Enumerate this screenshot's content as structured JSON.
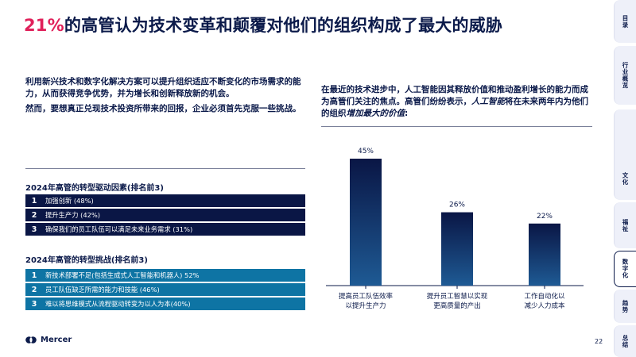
{
  "headline": {
    "accent": "21%",
    "rest": "的高管认为技术变革和颠覆对他们的组织构成了最大的威胁"
  },
  "intro": {
    "p1": "利用新兴技术和数字化解决方案可以提升组织适应不断变化的市场需求的能力，从而获得竞争优势，并为增长和创新释放新的机会。",
    "p2": "然而，要想真正兑现技术投资所带来的回报，企业必须首先克服一些挑战。"
  },
  "drivers": {
    "title": "2024年高管的转型驱动因素(排名前3)",
    "items": [
      {
        "num": "1",
        "text": "加强创新 (48%)"
      },
      {
        "num": "2",
        "text": "提升生产力 (42%)"
      },
      {
        "num": "3",
        "text": "确保我们的员工队伍可以满足未来业务需求 (31%)"
      }
    ]
  },
  "challenges": {
    "title": "2024年高管的转型挑战(排名前3)",
    "items": [
      {
        "num": "1",
        "text": "新技术部署不足(包括生成式人工智能和机器人) 52%"
      },
      {
        "num": "2",
        "text": "员工队伍缺乏所需的能力和技能 (46%)"
      },
      {
        "num": "3",
        "text": "难以将思维模式从流程驱动转变为以人为本(40%)"
      }
    ]
  },
  "chart_intro": {
    "part1": "在最近的技术进步中，人工智能因其释放价值和推动盈利增长的能力而成为高管们关注的焦点。高管们纷纷表示，",
    "em1": "人工智能",
    "part2": "将在未来两年内为他们的组织",
    "em2": "增加最大的价值",
    "part3": ":"
  },
  "chart_data": {
    "type": "bar",
    "categories": [
      [
        "提高员工队伍效率",
        "以提升生产力"
      ],
      [
        "提升员工智慧以实现",
        "更高质量的产出"
      ],
      [
        "工作自动化以",
        "减少人力成本"
      ]
    ],
    "values": [
      45,
      26,
      22
    ],
    "value_labels": [
      "45%",
      "26%",
      "22%"
    ],
    "unit": "%",
    "ylim": [
      0,
      45
    ],
    "grid": false,
    "colors": {
      "bar_top": "#0a1645",
      "bar_bottom": "#1e5a94",
      "label": "#0b1a4a",
      "axis": "#0b1a4a"
    }
  },
  "footer": {
    "brand": "Mercer",
    "page": "22"
  },
  "side_nav": {
    "tabs": [
      {
        "label": "目录",
        "active": false
      },
      {
        "label": "行业概览",
        "active": false
      },
      {
        "label": "文化",
        "active": false
      },
      {
        "label": "福祉",
        "active": false
      },
      {
        "label": "数字化",
        "active": true
      },
      {
        "label": "趋势",
        "active": false
      },
      {
        "label": "总结",
        "active": false
      }
    ]
  },
  "colors": {
    "accent": "#e0205a",
    "navy": "#0b1a4a",
    "teal": "#0e74a4",
    "tab_bg": "#eef0f9"
  }
}
